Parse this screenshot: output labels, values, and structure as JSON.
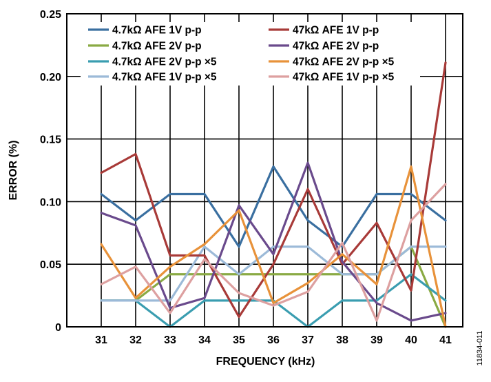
{
  "chart_data": {
    "type": "line",
    "title": "",
    "xlabel": "FREQUENCY (kHz)",
    "ylabel": "ERROR (%)",
    "x": [
      31,
      32,
      33,
      34,
      35,
      36,
      37,
      38,
      39,
      40,
      41
    ],
    "xlim": [
      30,
      41.5
    ],
    "ylim": [
      0,
      0.25
    ],
    "xticks": [
      "31",
      "32",
      "33",
      "34",
      "35",
      "36",
      "37",
      "38",
      "39",
      "40",
      "41"
    ],
    "yticks": [
      "0",
      "0.05",
      "0.10",
      "0.15",
      "0.20",
      "0.25"
    ],
    "grid": true,
    "legend_position": "top",
    "figure_id": "11834-011",
    "series": [
      {
        "name": "4.7kΩ AFE 1V p-p",
        "color": "#3a6fa0",
        "values": [
          0.106,
          0.085,
          0.106,
          0.106,
          0.064,
          0.128,
          0.085,
          0.064,
          0.106,
          0.106,
          0.085
        ]
      },
      {
        "name": "4.7kΩ AFE 2V p-p",
        "color": "#8aaa44",
        "values": [
          0.021,
          0.021,
          0.042,
          0.042,
          0.042,
          0.042,
          0.042,
          0.042,
          0.042,
          0.064,
          0.0
        ]
      },
      {
        "name": "4.7kΩ AFE 2V p-p ×5",
        "color": "#3a9db0",
        "values": [
          0.021,
          0.021,
          0.0,
          0.021,
          0.021,
          0.021,
          0.0,
          0.021,
          0.021,
          0.042,
          0.021
        ]
      },
      {
        "name": "4.7kΩ AFE 1V p-p ×5",
        "color": "#9cbad8",
        "values": [
          0.021,
          0.021,
          0.021,
          0.064,
          0.042,
          0.064,
          0.064,
          0.042,
          0.042,
          0.064,
          0.064
        ]
      },
      {
        "name": "47kΩ AFE 1V p-p",
        "color": "#a83a38",
        "values": [
          0.123,
          0.138,
          0.057,
          0.057,
          0.008,
          0.05,
          0.11,
          0.05,
          0.083,
          0.029,
          0.211
        ]
      },
      {
        "name": "47kΩ AFE 2V p-p",
        "color": "#6a4a8c",
        "values": [
          0.091,
          0.081,
          0.015,
          0.023,
          0.097,
          0.058,
          0.131,
          0.052,
          0.019,
          0.005,
          0.011
        ]
      },
      {
        "name": "47kΩ AFE 2V p-p ×5",
        "color": "#e8923a",
        "values": [
          0.066,
          0.023,
          0.048,
          0.066,
          0.093,
          0.019,
          0.035,
          0.058,
          0.034,
          0.128,
          0.0
        ]
      },
      {
        "name": "47kΩ AFE 1V p-p ×5",
        "color": "#dda0a0",
        "values": [
          0.034,
          0.048,
          0.011,
          0.054,
          0.027,
          0.017,
          0.028,
          0.067,
          0.005,
          0.085,
          0.114
        ]
      }
    ]
  }
}
